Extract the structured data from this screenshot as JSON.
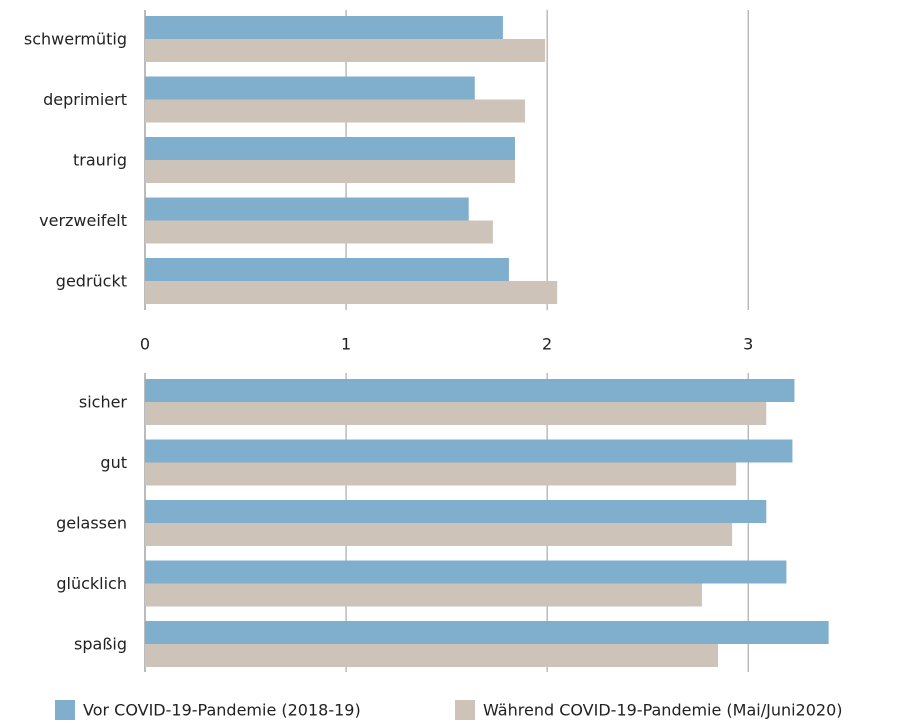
{
  "chart_data": {
    "type": "bar",
    "orientation": "horizontal",
    "categories": [
      "schwermütig",
      "deprimiert",
      "traurig",
      "verzweifelt",
      "gedrückt",
      "sicher",
      "gut",
      "gelassen",
      "glücklich",
      "spaßig"
    ],
    "series": [
      {
        "name": "Vor COVID-19-Pandemie (2018-19)",
        "color": "#7fafcc",
        "values": [
          1.78,
          1.64,
          1.84,
          1.61,
          1.81,
          3.23,
          3.22,
          3.09,
          3.19,
          3.4
        ]
      },
      {
        "name": "Während COVID-19-Pandemie (Mai/Juni2020)",
        "color": "#cdc3b8",
        "values": [
          1.99,
          1.89,
          1.84,
          1.73,
          2.05,
          3.09,
          2.94,
          2.92,
          2.77,
          2.85
        ]
      }
    ],
    "xlim": [
      0,
      3.75
    ],
    "xticks": [
      0,
      1,
      2,
      3
    ],
    "grid": true
  }
}
